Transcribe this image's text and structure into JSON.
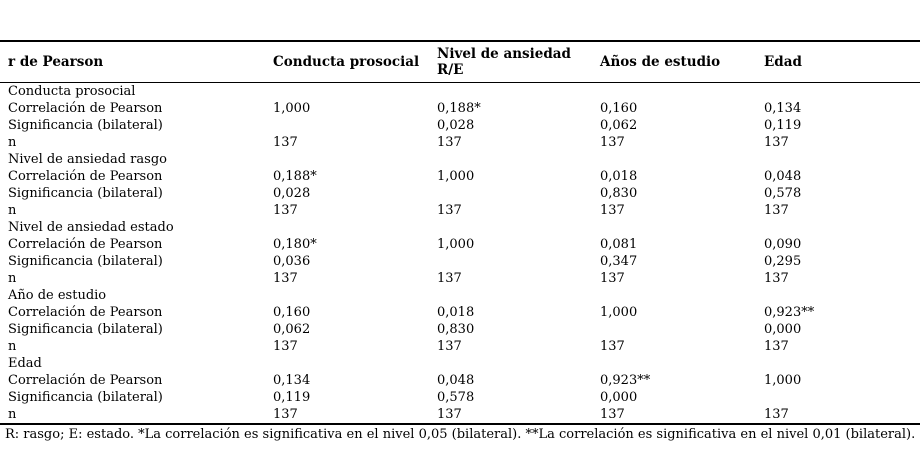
{
  "table": {
    "headers": [
      "r de Pearson",
      "Conducta prosocial",
      "Nivel de ansiedad R/E",
      "Años de estudio",
      "Edad"
    ],
    "groups": [
      {
        "label": "Conducta prosocial",
        "rows": [
          {
            "label": "Correlación de Pearson",
            "values": [
              "1,000",
              "0,188*",
              "0,160",
              "0,134"
            ]
          },
          {
            "label": "Significancia (bilateral)",
            "values": [
              "",
              "0,028",
              "0,062",
              "0,119"
            ]
          },
          {
            "label": "n",
            "values": [
              "137",
              "137",
              "137",
              "137"
            ]
          }
        ]
      },
      {
        "label": "Nivel de ansiedad rasgo",
        "rows": [
          {
            "label": "Correlación de Pearson",
            "values": [
              "0,188*",
              "1,000",
              "0,018",
              "0,048"
            ]
          },
          {
            "label": "Significancia (bilateral)",
            "values": [
              "0,028",
              "",
              "0,830",
              "0,578"
            ]
          },
          {
            "label": "n",
            "values": [
              "137",
              "137",
              "137",
              "137"
            ]
          }
        ]
      },
      {
        "label": "Nivel de ansiedad estado",
        "rows": [
          {
            "label": "Correlación de Pearson",
            "values": [
              "0,180*",
              "1,000",
              "0,081",
              "0,090"
            ]
          },
          {
            "label": "Significancia (bilateral)",
            "values": [
              "0,036",
              "",
              "0,347",
              "0,295"
            ]
          },
          {
            "label": "n",
            "values": [
              "137",
              "137",
              "137",
              "137"
            ]
          }
        ]
      },
      {
        "label": "Año de estudio",
        "rows": [
          {
            "label": "Correlación de Pearson",
            "values": [
              "0,160",
              "0,018",
              "1,000",
              "0,923**"
            ]
          },
          {
            "label": "Significancia (bilateral)",
            "values": [
              "0,062",
              "0,830",
              "",
              "0,000"
            ]
          },
          {
            "label": "n",
            "values": [
              "137",
              "137",
              "137",
              "137"
            ]
          }
        ]
      },
      {
        "label": "Edad",
        "rows": [
          {
            "label": "Correlación de Pearson",
            "values": [
              "0,134",
              "0,048",
              "0,923**",
              "1,000"
            ]
          },
          {
            "label": "Significancia (bilateral)",
            "values": [
              "0,119",
              "0,578",
              "0,000",
              ""
            ]
          },
          {
            "label": "n",
            "values": [
              "137",
              "137",
              "137",
              "137"
            ]
          }
        ]
      }
    ],
    "footnote": "R: rasgo; E: estado. *La correlación es significativa en el nivel 0,05 (bilateral). **La correlación es significativa en el nivel 0,01 (bilateral)."
  }
}
